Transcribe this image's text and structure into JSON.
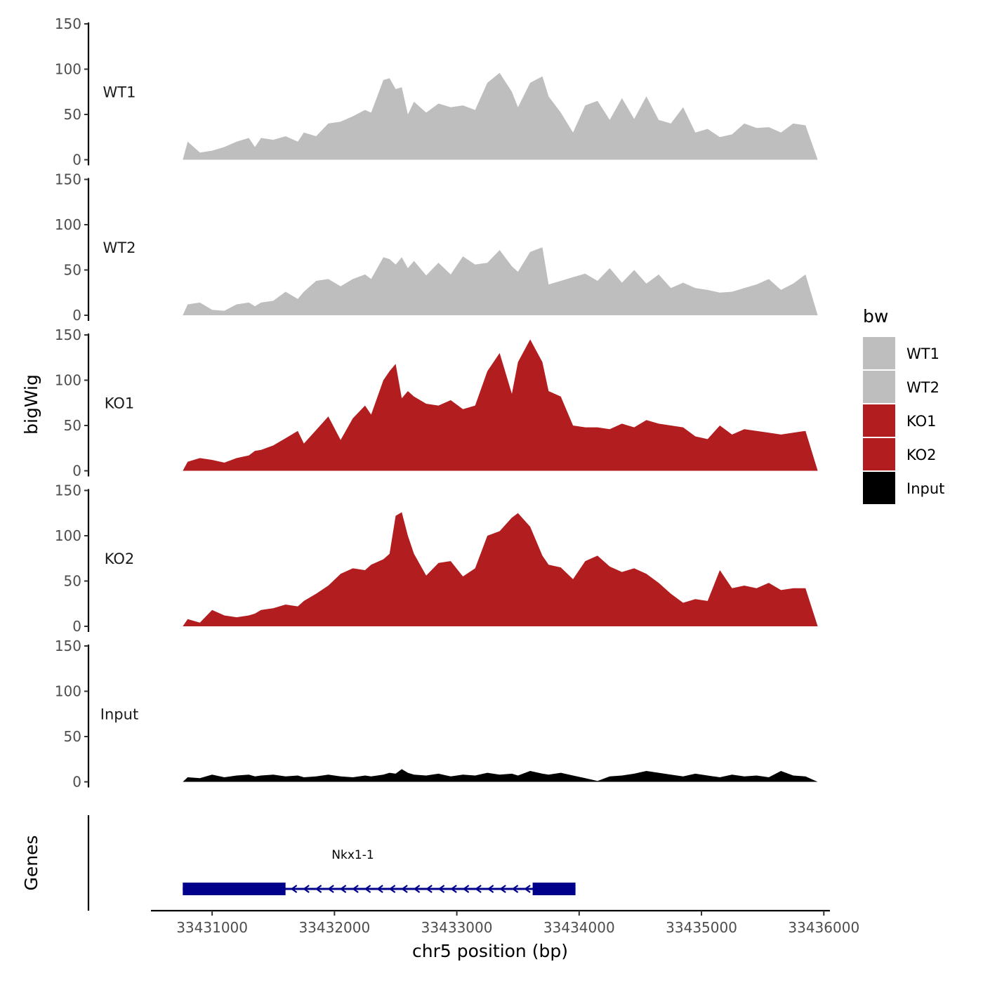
{
  "chart_data": {
    "type": "area",
    "title": "",
    "ylabel": "bigWig",
    "xlabel": "chr5 position (bp)",
    "genes_label": "Genes",
    "ylim": [
      0,
      150
    ],
    "yticks": [
      0,
      50,
      100,
      150
    ],
    "xlim": [
      33430500,
      33436050
    ],
    "xticks": [
      33431000,
      33432000,
      33433000,
      33434000,
      33435000,
      33436000
    ],
    "xtick_labels": [
      "33431000",
      "33432000",
      "33433000",
      "33434000",
      "33435000",
      "33436000"
    ],
    "legend": {
      "title": "bw",
      "position": "right",
      "entries": [
        {
          "label": "WT1",
          "color": "#bebebe"
        },
        {
          "label": "WT2",
          "color": "#bebebe"
        },
        {
          "label": "KO1",
          "color": "#b21e1f"
        },
        {
          "label": "KO2",
          "color": "#b21e1f"
        },
        {
          "label": "Input",
          "color": "#000000"
        }
      ]
    },
    "series": [
      {
        "name": "WT1",
        "color": "#bebebe",
        "x": [
          33430760,
          33430800,
          33430900,
          33431000,
          33431100,
          33431200,
          33431300,
          33431350,
          33431400,
          33431500,
          33431600,
          33431700,
          33431750,
          33431850,
          33431950,
          33432050,
          33432150,
          33432250,
          33432300,
          33432400,
          33432450,
          33432500,
          33432550,
          33432600,
          33432650,
          33432750,
          33432850,
          33432950,
          33433050,
          33433150,
          33433250,
          33433350,
          33433450,
          33433500,
          33433600,
          33433700,
          33433750,
          33433850,
          33433950,
          33434050,
          33434150,
          33434250,
          33434350,
          33434450,
          33434550,
          33434650,
          33434750,
          33434850,
          33434950,
          33435050,
          33435150,
          33435250,
          33435350,
          33435450,
          33435550,
          33435650,
          33435750,
          33435850,
          33435950
        ],
        "values": [
          0,
          20,
          8,
          10,
          14,
          20,
          24,
          14,
          24,
          22,
          26,
          20,
          30,
          26,
          40,
          42,
          48,
          55,
          52,
          88,
          90,
          78,
          80,
          50,
          64,
          52,
          62,
          58,
          60,
          55,
          85,
          96,
          75,
          58,
          85,
          92,
          70,
          52,
          30,
          60,
          65,
          44,
          68,
          45,
          70,
          44,
          40,
          58,
          30,
          34,
          25,
          28,
          40,
          35,
          36,
          30,
          40,
          38,
          0
        ]
      },
      {
        "name": "WT2",
        "color": "#bebebe",
        "x": [
          33430760,
          33430800,
          33430900,
          33431000,
          33431100,
          33431200,
          33431300,
          33431350,
          33431400,
          33431500,
          33431600,
          33431700,
          33431750,
          33431850,
          33431950,
          33432050,
          33432150,
          33432250,
          33432300,
          33432400,
          33432450,
          33432500,
          33432550,
          33432600,
          33432650,
          33432750,
          33432850,
          33432950,
          33433050,
          33433150,
          33433250,
          33433350,
          33433450,
          33433500,
          33433600,
          33433700,
          33433750,
          33433850,
          33433950,
          33434050,
          33434150,
          33434250,
          33434350,
          33434450,
          33434550,
          33434650,
          33434750,
          33434850,
          33434950,
          33435050,
          33435150,
          33435250,
          33435350,
          33435450,
          33435550,
          33435650,
          33435750,
          33435850,
          33435950
        ],
        "values": [
          0,
          12,
          14,
          6,
          5,
          12,
          14,
          10,
          14,
          16,
          26,
          18,
          26,
          38,
          40,
          32,
          40,
          45,
          40,
          64,
          62,
          56,
          64,
          52,
          60,
          44,
          58,
          45,
          65,
          56,
          58,
          72,
          54,
          48,
          70,
          75,
          34,
          38,
          42,
          46,
          38,
          52,
          36,
          50,
          35,
          45,
          30,
          36,
          30,
          28,
          25,
          26,
          30,
          34,
          40,
          28,
          35,
          45,
          0
        ]
      },
      {
        "name": "KO1",
        "color": "#b21e1f",
        "x": [
          33430760,
          33430800,
          33430900,
          33431000,
          33431100,
          33431200,
          33431300,
          33431350,
          33431400,
          33431500,
          33431600,
          33431700,
          33431750,
          33431850,
          33431950,
          33432050,
          33432150,
          33432250,
          33432300,
          33432400,
          33432450,
          33432500,
          33432550,
          33432600,
          33432650,
          33432750,
          33432850,
          33432950,
          33433050,
          33433150,
          33433250,
          33433350,
          33433450,
          33433500,
          33433600,
          33433700,
          33433750,
          33433850,
          33433950,
          33434050,
          33434150,
          33434250,
          33434350,
          33434450,
          33434550,
          33434650,
          33434750,
          33434850,
          33434950,
          33435050,
          33435150,
          33435250,
          33435350,
          33435450,
          33435550,
          33435650,
          33435750,
          33435850,
          33435950
        ],
        "values": [
          0,
          10,
          14,
          12,
          9,
          14,
          17,
          22,
          23,
          28,
          36,
          44,
          30,
          45,
          60,
          34,
          58,
          72,
          62,
          100,
          110,
          118,
          80,
          88,
          82,
          74,
          72,
          78,
          68,
          72,
          110,
          130,
          85,
          120,
          145,
          120,
          88,
          82,
          50,
          48,
          48,
          46,
          52,
          48,
          56,
          52,
          50,
          48,
          38,
          35,
          50,
          40,
          46,
          44,
          42,
          40,
          42,
          44,
          0
        ]
      },
      {
        "name": "KO2",
        "color": "#b21e1f",
        "x": [
          33430760,
          33430800,
          33430900,
          33431000,
          33431100,
          33431200,
          33431300,
          33431350,
          33431400,
          33431500,
          33431600,
          33431700,
          33431750,
          33431850,
          33431950,
          33432050,
          33432150,
          33432250,
          33432300,
          33432400,
          33432450,
          33432500,
          33432550,
          33432600,
          33432650,
          33432750,
          33432850,
          33432950,
          33433050,
          33433150,
          33433250,
          33433350,
          33433450,
          33433500,
          33433600,
          33433700,
          33433750,
          33433850,
          33433950,
          33434050,
          33434150,
          33434250,
          33434350,
          33434450,
          33434550,
          33434650,
          33434750,
          33434850,
          33434950,
          33435050,
          33435150,
          33435250,
          33435350,
          33435450,
          33435550,
          33435650,
          33435750,
          33435850,
          33435950
        ],
        "values": [
          0,
          8,
          4,
          18,
          12,
          10,
          12,
          14,
          18,
          20,
          24,
          22,
          28,
          36,
          45,
          58,
          64,
          62,
          68,
          74,
          80,
          122,
          126,
          100,
          80,
          56,
          70,
          72,
          55,
          64,
          100,
          105,
          120,
          125,
          110,
          78,
          68,
          65,
          52,
          72,
          78,
          66,
          60,
          64,
          58,
          48,
          36,
          26,
          30,
          28,
          62,
          42,
          45,
          42,
          48,
          40,
          42,
          42,
          0
        ]
      },
      {
        "name": "Input",
        "color": "#000000",
        "x": [
          33430760,
          33430800,
          33430900,
          33431000,
          33431100,
          33431200,
          33431300,
          33431350,
          33431400,
          33431500,
          33431600,
          33431700,
          33431750,
          33431850,
          33431950,
          33432050,
          33432150,
          33432250,
          33432300,
          33432400,
          33432450,
          33432500,
          33432550,
          33432600,
          33432650,
          33432750,
          33432850,
          33432950,
          33433050,
          33433150,
          33433250,
          33433350,
          33433450,
          33433500,
          33433600,
          33433700,
          33433750,
          33433850,
          33433950,
          33434050,
          33434150,
          33434250,
          33434350,
          33434450,
          33434550,
          33434650,
          33434750,
          33434850,
          33434950,
          33435050,
          33435150,
          33435250,
          33435350,
          33435450,
          33435550,
          33435650,
          33435750,
          33435850,
          33435950
        ],
        "values": [
          0,
          5,
          4,
          8,
          5,
          7,
          8,
          6,
          7,
          8,
          6,
          7,
          5,
          6,
          8,
          6,
          5,
          7,
          6,
          8,
          10,
          9,
          14,
          10,
          8,
          7,
          9,
          6,
          8,
          7,
          10,
          8,
          9,
          7,
          12,
          9,
          8,
          10,
          7,
          4,
          1,
          6,
          7,
          9,
          12,
          10,
          8,
          6,
          9,
          7,
          5,
          8,
          6,
          7,
          5,
          12,
          7,
          6,
          0
        ]
      }
    ],
    "gene": {
      "name": "Nkx1-1",
      "strand": "-",
      "start": 33430760,
      "end": 33433970,
      "exons": [
        [
          33430760,
          33431600
        ],
        [
          33433620,
          33433970
        ]
      ]
    }
  }
}
